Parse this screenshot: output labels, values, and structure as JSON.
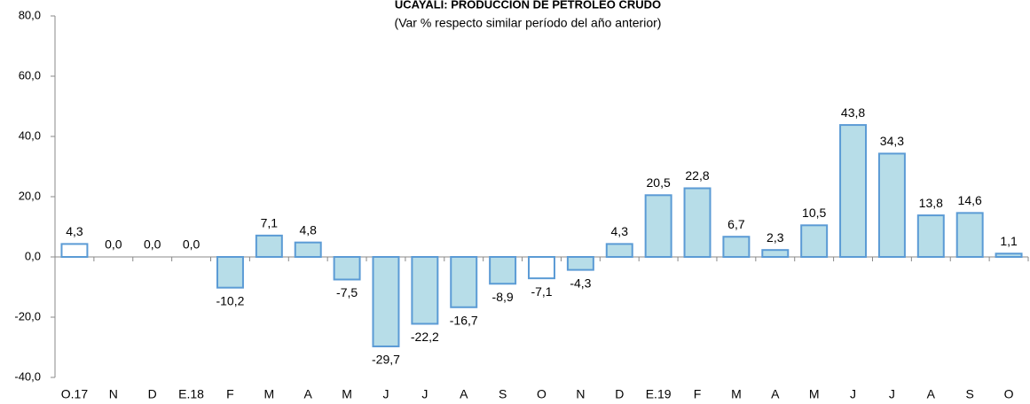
{
  "chart_data": {
    "type": "bar",
    "title": "UCAYALI: PRODUCCIÓN DE PETRÓLEO CRUDO",
    "subtitle": "(Var % respecto similar período del año anterior)",
    "categories": [
      "O.17",
      "N",
      "D",
      "E.18",
      "F",
      "M",
      "A",
      "M",
      "J",
      "J",
      "A",
      "S",
      "O",
      "N",
      "D",
      "E.19",
      "F",
      "M",
      "A",
      "M",
      "J",
      "J",
      "A",
      "S",
      "O"
    ],
    "values": [
      4.3,
      0.0,
      0.0,
      0.0,
      -10.2,
      7.1,
      4.8,
      -7.5,
      -29.7,
      -22.2,
      -16.7,
      -8.9,
      -7.1,
      -4.3,
      4.3,
      20.5,
      22.8,
      6.7,
      2.3,
      10.5,
      43.8,
      34.3,
      13.8,
      14.6,
      1.1
    ],
    "value_labels": [
      "4,3",
      "0,0",
      "0,0",
      "0,0",
      "-10,2",
      "7,1",
      "4,8",
      "-7,5",
      "-29,7",
      "-22,2",
      "-16,7",
      "-8,9",
      "-7,1",
      "-4,3",
      "4,3",
      "20,5",
      "22,8",
      "6,7",
      "2,3",
      "10,5",
      "43,8",
      "34,3",
      "13,8",
      "14,6",
      "1,1"
    ],
    "colors": [
      "#ffffff",
      "#b7dde8",
      "#b7dde8",
      "#b7dde8",
      "#b7dde8",
      "#b7dde8",
      "#b7dde8",
      "#b7dde8",
      "#b7dde8",
      "#b7dde8",
      "#b7dde8",
      "#b7dde8",
      "#ffffff",
      "#b7dde8",
      "#b7dde8",
      "#b7dde8",
      "#b7dde8",
      "#b7dde8",
      "#b7dde8",
      "#b7dde8",
      "#b7dde8",
      "#b7dde8",
      "#b7dde8",
      "#b7dde8",
      "#b7dde8"
    ],
    "edge_color": "#5b9bd5",
    "ylim": [
      -40,
      80
    ],
    "yticks": [
      {
        "value": -40,
        "label": "-40,0"
      },
      {
        "value": -20,
        "label": "-20,0"
      },
      {
        "value": 0,
        "label": "0,0"
      },
      {
        "value": 20,
        "label": "20,0"
      },
      {
        "value": 40,
        "label": "40,0"
      },
      {
        "value": 60,
        "label": "60,0"
      },
      {
        "value": 80,
        "label": "80,0"
      }
    ],
    "grid": false
  }
}
